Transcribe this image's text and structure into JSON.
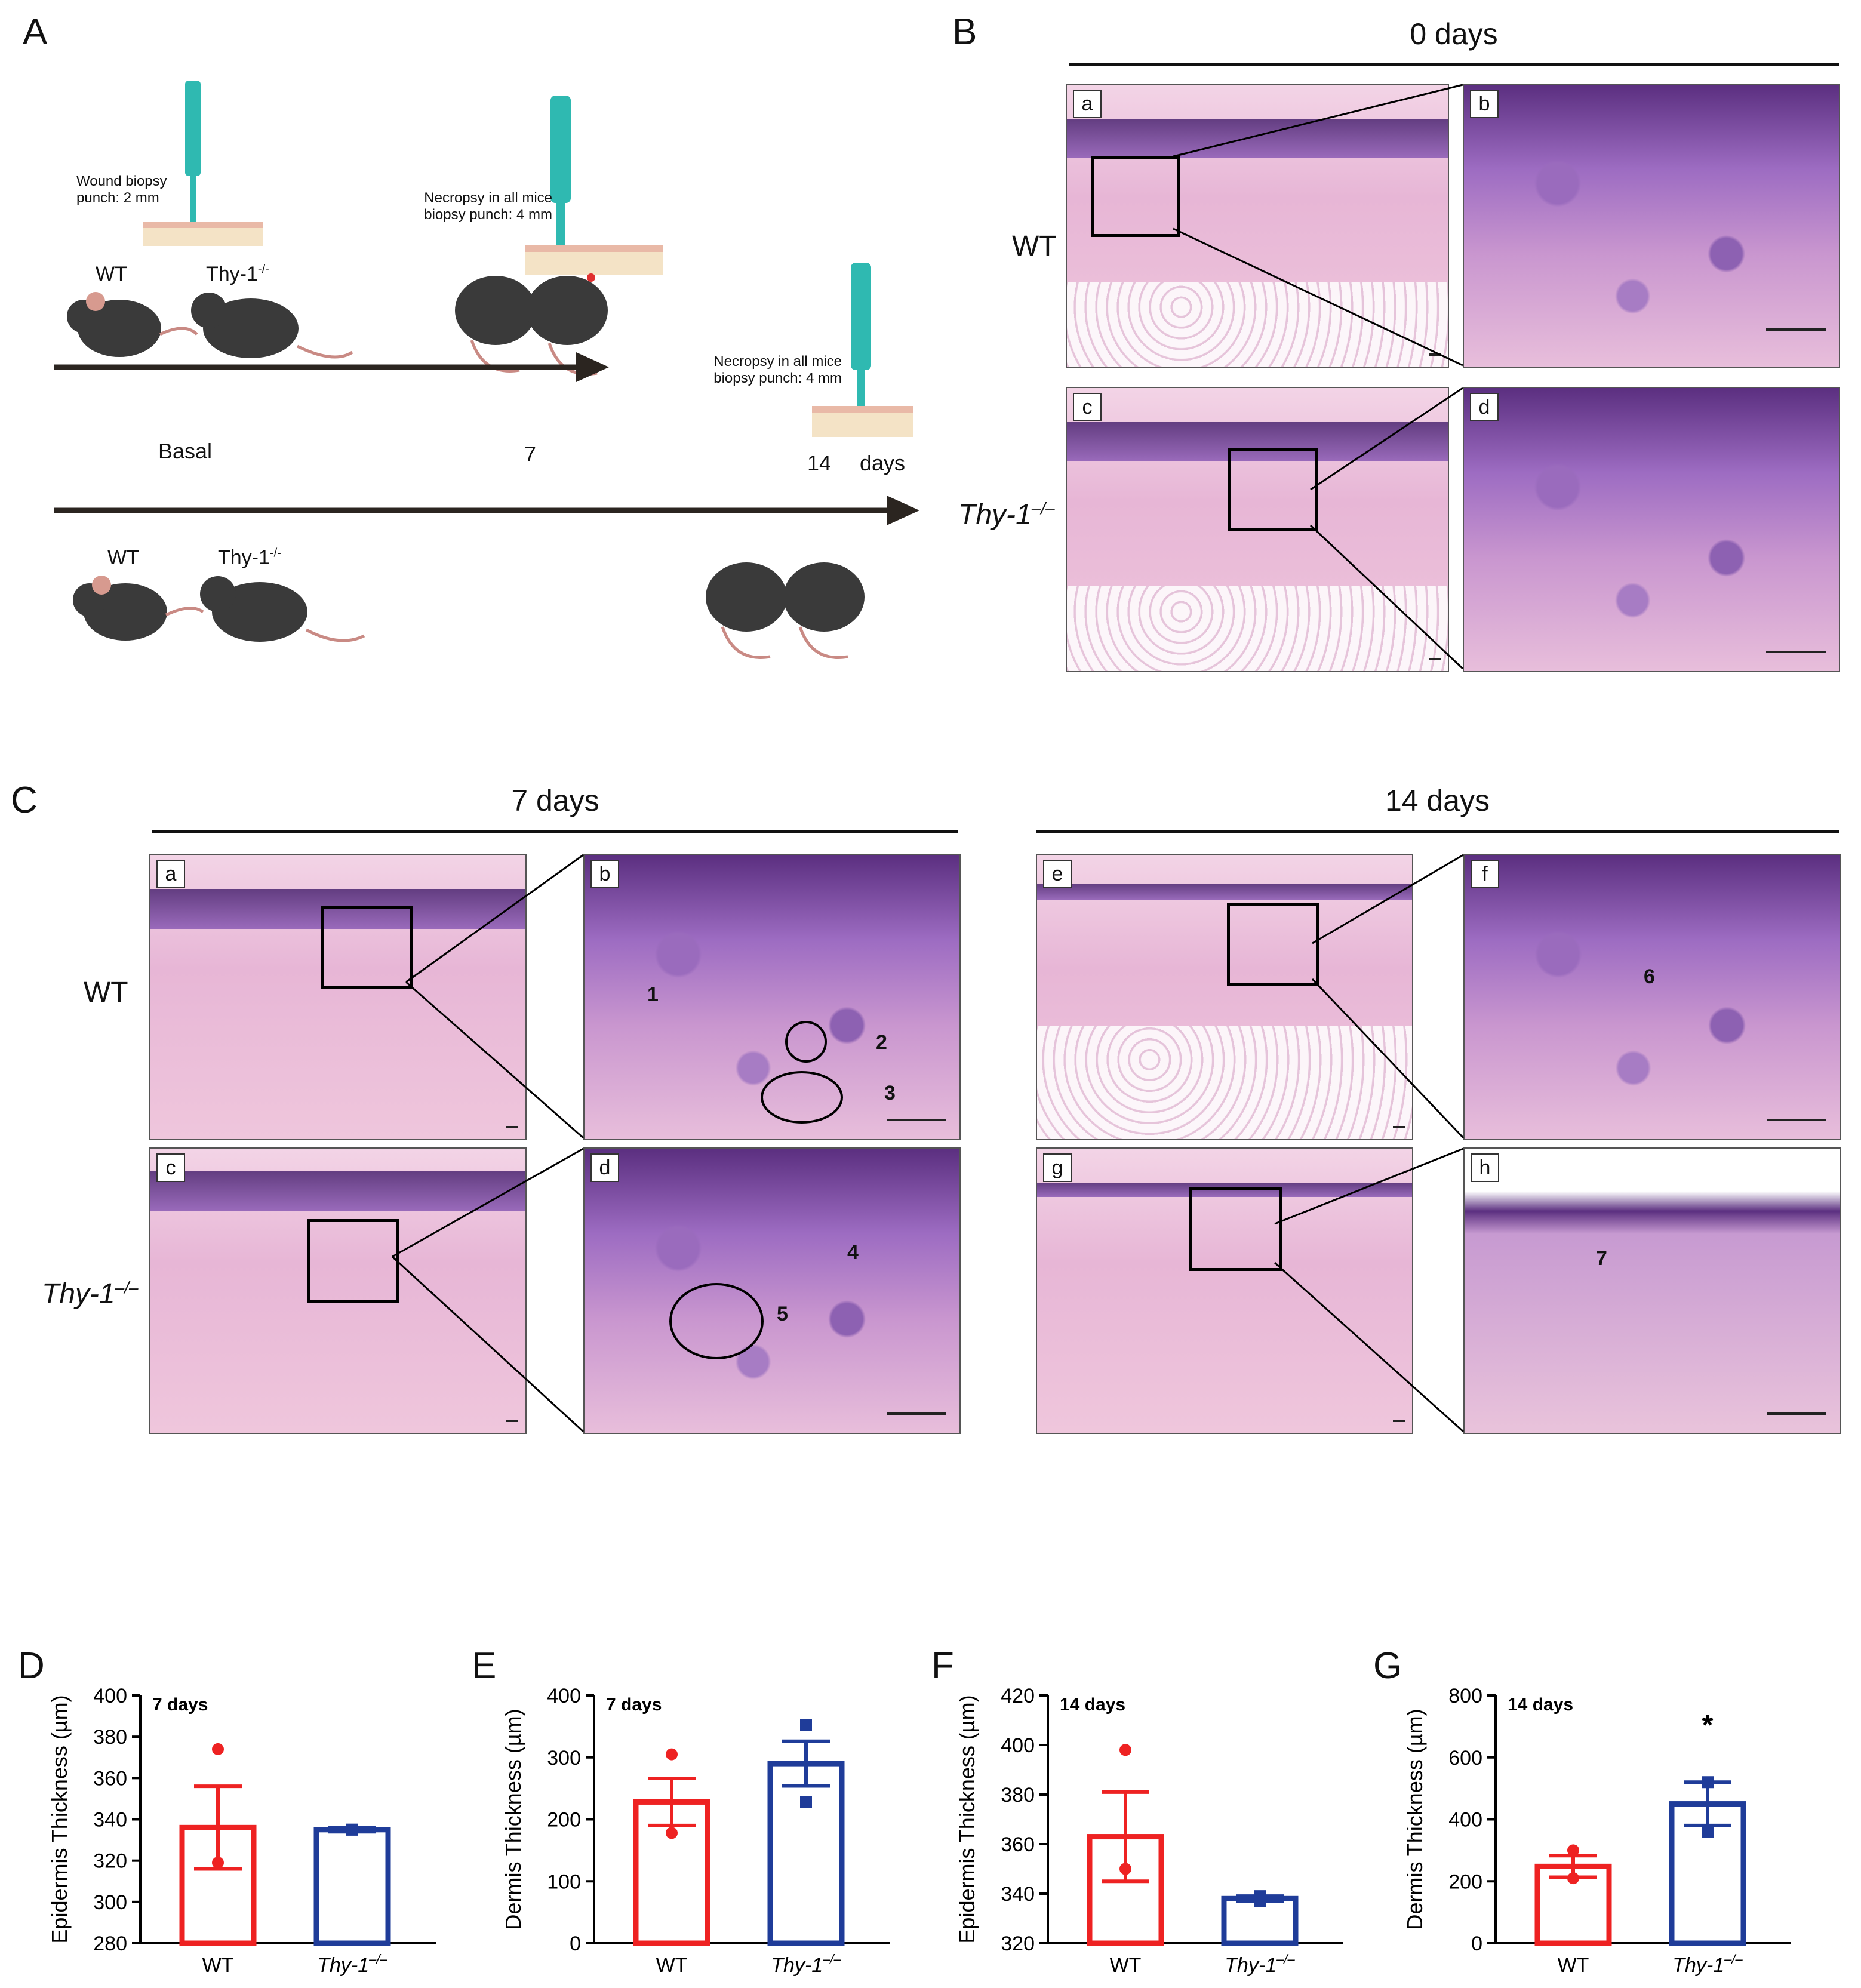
{
  "panel_letters": {
    "A": "A",
    "B": "B",
    "C": "C",
    "D": "D",
    "E": "E",
    "F": "F",
    "G": "G"
  },
  "panelA": {
    "punch_wound": "Wound biopsy punch: 2 mm",
    "punch_necropsy_7": "Necropsy in all mice biopsy punch: 4 mm",
    "punch_necropsy_14": "Necropsy in all mice biopsy punch: 4 mm",
    "wt": "WT",
    "ko": "Thy-1",
    "ko_sup": "-/-",
    "wt2": "WT",
    "ko2": "Thy-1",
    "ko2_sup": "-/-",
    "basal": "Basal",
    "day7": "7",
    "day14": "14",
    "days": "days",
    "colors": {
      "punch": "#2fb9b1",
      "mouse": "#3a3a3a",
      "ear": "#d79a8f",
      "tail": "#c98a84",
      "arrow": "#2b2520",
      "skin": "#f4e3c6"
    }
  },
  "panelB": {
    "title": "0 days",
    "row_wt": "WT",
    "row_ko": "Thy-1",
    "row_ko_sup": "–/–",
    "sub": [
      "a",
      "b",
      "c",
      "d"
    ]
  },
  "panelC": {
    "title_7": "7 days",
    "title_14": "14 days",
    "row_wt": "WT",
    "row_ko": "Thy-1",
    "row_ko_sup": "–/–",
    "sub": [
      "a",
      "b",
      "c",
      "d",
      "e",
      "f",
      "g",
      "h"
    ],
    "markers": [
      "1",
      "2",
      "3",
      "4",
      "5",
      "6",
      "7"
    ]
  },
  "chart_data": [
    {
      "panel": "D",
      "type": "bar",
      "annotation": "7 days",
      "ylabel": "Epidermis Thickness (µm)",
      "ylim": [
        280,
        400
      ],
      "yticks": [
        280,
        300,
        320,
        340,
        360,
        380,
        400
      ],
      "categories": [
        "WT",
        "Thy-1"
      ],
      "category_sup": [
        "",
        "–/–"
      ],
      "values": [
        336,
        335
      ],
      "errors": [
        20,
        1
      ],
      "points": [
        [
          374,
          319
        ],
        [
          335,
          335
        ]
      ],
      "colors": [
        "#ee2222",
        "#1f3c99"
      ],
      "significance": [
        "",
        ""
      ]
    },
    {
      "panel": "E",
      "type": "bar",
      "annotation": "7 days",
      "ylabel": "Dermis Thickness (µm)",
      "ylim": [
        0,
        400
      ],
      "yticks": [
        0,
        100,
        200,
        300,
        400
      ],
      "categories": [
        "WT",
        "Thy-1"
      ],
      "category_sup": [
        "",
        "–/–"
      ],
      "values": [
        228,
        290
      ],
      "errors": [
        38,
        36
      ],
      "points": [
        [
          305,
          178
        ],
        [
          352,
          228
        ]
      ],
      "colors": [
        "#ee2222",
        "#1f3c99"
      ],
      "significance": [
        "",
        ""
      ]
    },
    {
      "panel": "F",
      "type": "bar",
      "annotation": "14 days",
      "ylabel": "Epidermis Thickness (µm)",
      "ylim": [
        320,
        420
      ],
      "yticks": [
        320,
        340,
        360,
        380,
        400,
        420
      ],
      "categories": [
        "WT",
        "Thy-1"
      ],
      "category_sup": [
        "",
        "–/–"
      ],
      "values": [
        363,
        338
      ],
      "errors": [
        18,
        1
      ],
      "points": [
        [
          398,
          350
        ],
        [
          339,
          337
        ]
      ],
      "colors": [
        "#ee2222",
        "#1f3c99"
      ],
      "significance": [
        "",
        ""
      ]
    },
    {
      "panel": "G",
      "type": "bar",
      "annotation": "14 days",
      "ylabel": "Dermis Thickness (µm)",
      "ylim": [
        0,
        800
      ],
      "yticks": [
        0,
        200,
        400,
        600,
        800
      ],
      "categories": [
        "WT",
        "Thy-1"
      ],
      "category_sup": [
        "",
        "–/–"
      ],
      "values": [
        248,
        450
      ],
      "errors": [
        35,
        70
      ],
      "points": [
        [
          300,
          210
        ],
        [
          520,
          360
        ]
      ],
      "colors": [
        "#ee2222",
        "#1f3c99"
      ],
      "significance": [
        "",
        "*"
      ]
    }
  ]
}
